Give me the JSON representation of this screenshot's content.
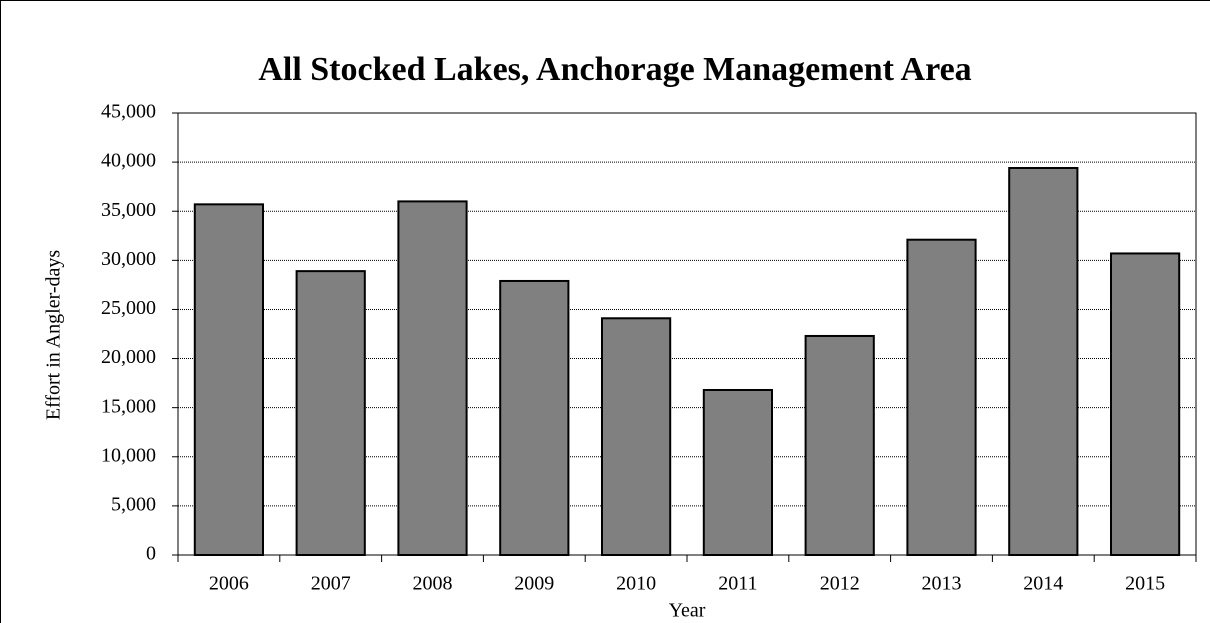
{
  "chart_data": {
    "type": "bar",
    "title": "All Stocked Lakes, Anchorage Management Area",
    "x_label": "Year",
    "y_label": "Effort in Angler-days",
    "categories": [
      "2006",
      "2007",
      "2008",
      "2009",
      "2010",
      "2011",
      "2012",
      "2013",
      "2014",
      "2015"
    ],
    "values": [
      35700,
      28900,
      36000,
      27900,
      24100,
      16800,
      22300,
      32100,
      39400,
      30700
    ],
    "color": "#808080",
    "ylim": [
      0,
      45000
    ],
    "yticks": [
      0,
      {
        "value": 5000,
        "label": "5,000"
      },
      {
        "value": 10000,
        "label": "10,000"
      },
      {
        "value": 15000,
        "label": "15,000"
      },
      {
        "value": 20000,
        "label": "20,000"
      },
      {
        "value": 25000,
        "label": "25,000"
      },
      {
        "value": 30000,
        "label": "30,000"
      },
      {
        "value": 35000,
        "label": "35,000"
      },
      {
        "value": 40000,
        "label": "40,000"
      },
      {
        "value": 45000,
        "label": "45,000"
      }
    ],
    "grid": true
  }
}
